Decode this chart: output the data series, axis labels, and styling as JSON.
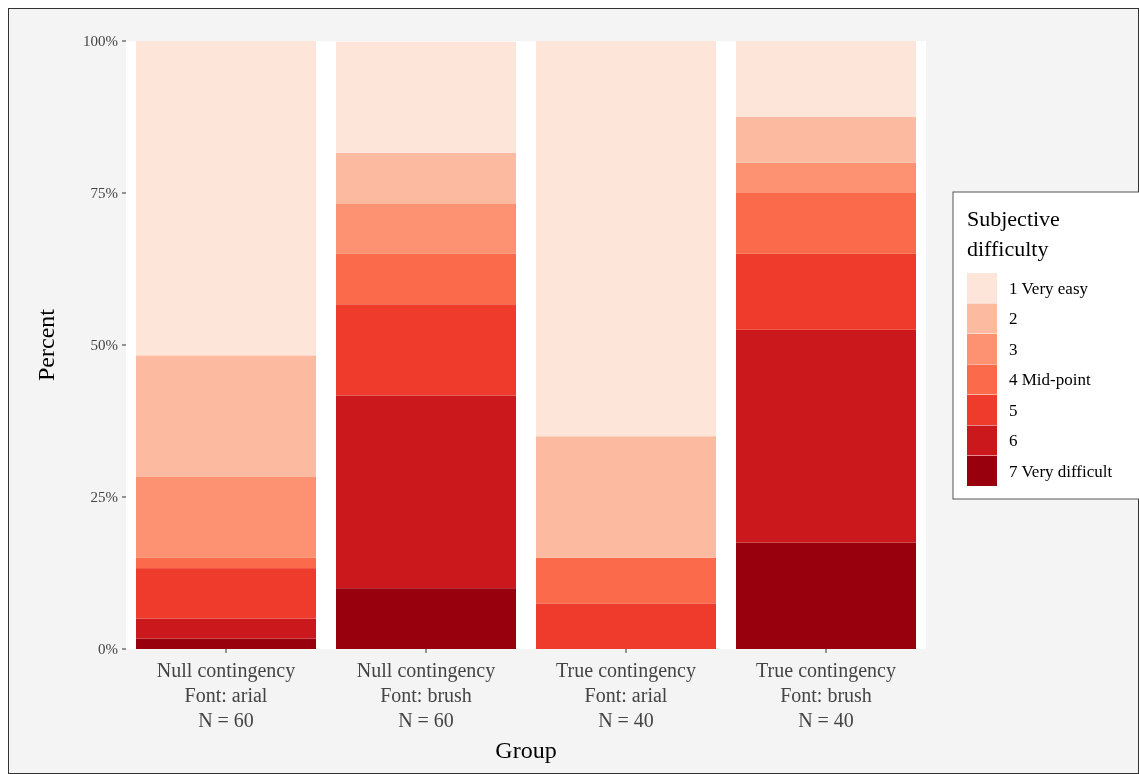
{
  "chart_data": {
    "type": "bar",
    "stacked": true,
    "xlabel": "Group",
    "ylabel": "Percent",
    "legend_title": "Subjective difficulty",
    "legend": "right",
    "categories": [
      "Null contingency\nFont: arial\nN = 60",
      "Null contingency\nFont: brush\nN = 60",
      "True contingency\nFont: arial\nN = 40",
      "True contingency\nFont: brush\nN = 40"
    ],
    "ylim": [
      0,
      100
    ],
    "yticks": [
      {
        "value": 0,
        "label": "0%"
      },
      {
        "value": 25,
        "label": "25%"
      },
      {
        "value": 50,
        "label": "50%"
      },
      {
        "value": 75,
        "label": "75%"
      },
      {
        "value": 100,
        "label": "100%"
      }
    ],
    "series": [
      {
        "name": "7 Very difficult",
        "color": "#99000d",
        "values": [
          1.7,
          10,
          0,
          17.5
        ]
      },
      {
        "name": "6",
        "color": "#cb181d",
        "values": [
          3.3,
          31.7,
          0,
          35
        ]
      },
      {
        "name": "5",
        "color": "#ef3b2c",
        "values": [
          8.3,
          15,
          7.5,
          12.5
        ]
      },
      {
        "name": "4 Mid-point",
        "color": "#fb6a4a",
        "values": [
          1.7,
          8.3,
          7.5,
          10
        ]
      },
      {
        "name": "3",
        "color": "#fc9272",
        "values": [
          13.3,
          8.3,
          0,
          5
        ]
      },
      {
        "name": "2",
        "color": "#fcbba1",
        "values": [
          20,
          8.3,
          20,
          7.5
        ]
      },
      {
        "name": "1 Very easy",
        "color": "#fee5d9",
        "values": [
          51.7,
          18.3,
          65,
          12.5
        ]
      }
    ]
  }
}
